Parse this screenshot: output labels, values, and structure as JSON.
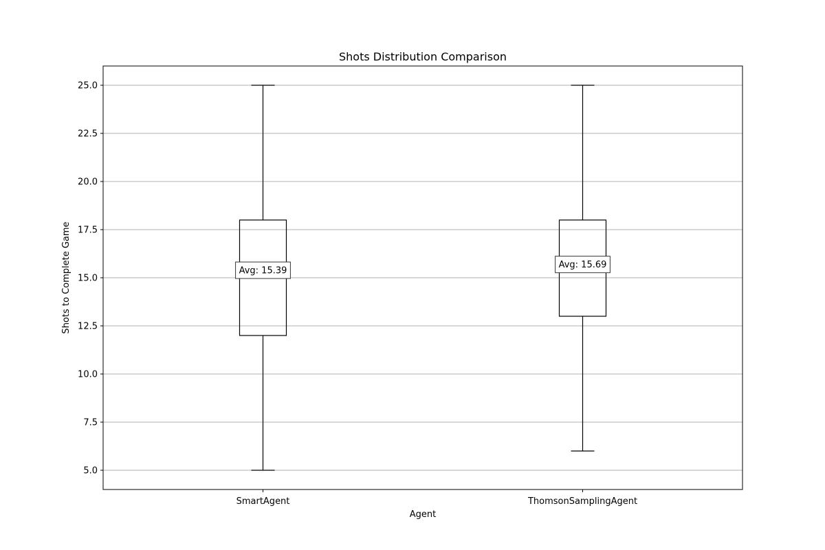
{
  "chart_data": {
    "type": "box",
    "title": "Shots Distribution Comparison",
    "xlabel": "Agent",
    "ylabel": "Shots to Complete Game",
    "ylim": [
      4.0,
      26.0
    ],
    "yticks": [
      "5.0",
      "7.5",
      "10.0",
      "12.5",
      "15.0",
      "17.5",
      "20.0",
      "22.5",
      "25.0"
    ],
    "grid": "y",
    "categories": [
      "SmartAgent",
      "ThomsonSamplingAgent"
    ],
    "boxes": [
      {
        "category": "SmartAgent",
        "min": 5,
        "q1": 12,
        "median": 15,
        "q3": 18,
        "max": 25,
        "mean": 15.39,
        "mean_label": "Avg: 15.39"
      },
      {
        "category": "ThomsonSamplingAgent",
        "min": 6,
        "q1": 13,
        "median": 16,
        "q3": 18,
        "max": 25,
        "mean": 15.69,
        "mean_label": "Avg: 15.69"
      }
    ],
    "colors": {
      "box": "#000000",
      "median": "#ff7f0e",
      "grid": "#b0b0b0"
    }
  }
}
